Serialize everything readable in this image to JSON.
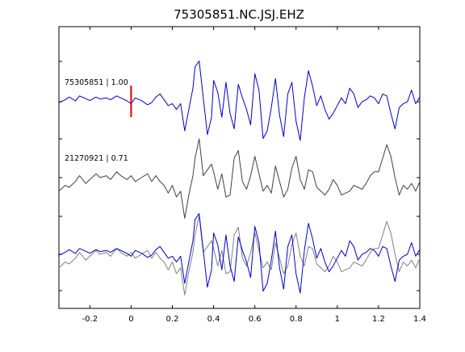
{
  "chart_data": {
    "type": "line",
    "title": "75305851.NC.JSJ.EHZ",
    "xlabel": "",
    "ylabel": "",
    "xlim": [
      -0.35,
      1.4
    ],
    "x_ticks": [
      -0.2,
      0,
      0.2,
      0.4,
      0.6,
      0.8,
      1,
      1.2,
      1.4
    ],
    "x_tick_labels": [
      "-0.2",
      "0",
      "0.2",
      "0.4",
      "0.6",
      "0.8",
      "1",
      "1.2",
      "1.4"
    ],
    "grid": false,
    "pick_time": 0,
    "colors": {
      "master": "#0000cc",
      "matched": "#404040",
      "matched_overlay": "#808080",
      "pick_marker": "#dd0000"
    },
    "panels": [
      {
        "label": "75305851 | 1.00",
        "series": [
          {
            "color_key": "master",
            "x": [
              -0.35,
              -0.32,
              -0.3,
              -0.27,
              -0.25,
              -0.22,
              -0.2,
              -0.17,
              -0.15,
              -0.12,
              -0.1,
              -0.07,
              -0.05,
              -0.02,
              0,
              0.02,
              0.05,
              0.08,
              0.1,
              0.12,
              0.14,
              0.16,
              0.18,
              0.2,
              0.22,
              0.24,
              0.26,
              0.28,
              0.3,
              0.31,
              0.33,
              0.35,
              0.37,
              0.39,
              0.4,
              0.42,
              0.44,
              0.46,
              0.48,
              0.5,
              0.52,
              0.54,
              0.56,
              0.58,
              0.6,
              0.62,
              0.64,
              0.66,
              0.68,
              0.7,
              0.72,
              0.74,
              0.76,
              0.78,
              0.8,
              0.82,
              0.84,
              0.86,
              0.88,
              0.9,
              0.92,
              0.94,
              0.96,
              0.98,
              1,
              1.02,
              1.04,
              1.06,
              1.08,
              1.1,
              1.12,
              1.14,
              1.16,
              1.18,
              1.2,
              1.22,
              1.24,
              1.26,
              1.28,
              1.3,
              1.32,
              1.34,
              1.36,
              1.38,
              1.4
            ],
            "y": [
              -0.02,
              0.05,
              0.12,
              0.02,
              0.15,
              0.08,
              0.03,
              0.12,
              0.07,
              0.1,
              0.05,
              0.15,
              0.1,
              0.02,
              -0.05,
              0.1,
              0.03,
              -0.08,
              -0.02,
              0.12,
              0.2,
              0.05,
              -0.1,
              -0.05,
              -0.2,
              -0.05,
              -0.75,
              -0.2,
              0.35,
              0.9,
              1.05,
              0.1,
              -0.85,
              -0.4,
              0.55,
              0.25,
              -0.4,
              0.5,
              -0.3,
              -0.7,
              0.45,
              0.1,
              -0.2,
              -0.6,
              0.72,
              0.3,
              -0.95,
              -0.75,
              -0.15,
              0.6,
              -0.35,
              -0.9,
              0.2,
              0.5,
              -0.5,
              -1.0,
              0.1,
              0.8,
              0.4,
              -0.1,
              0.15,
              -0.2,
              -0.45,
              -0.3,
              -0.1,
              0.1,
              -0.05,
              0.35,
              0.2,
              -0.15,
              0.0,
              0.05,
              0.15,
              0.1,
              -0.05,
              0.2,
              0.15,
              -0.3,
              -0.7,
              -0.15,
              -0.05,
              0.0,
              0.3,
              -0.05,
              0.12
            ]
          }
        ]
      },
      {
        "label": "21270921 | 0.71",
        "series": [
          {
            "color_key": "matched",
            "x": [
              -0.35,
              -0.32,
              -0.3,
              -0.27,
              -0.25,
              -0.22,
              -0.2,
              -0.17,
              -0.15,
              -0.12,
              -0.1,
              -0.07,
              -0.05,
              -0.02,
              0,
              0.02,
              0.05,
              0.08,
              0.1,
              0.12,
              0.14,
              0.16,
              0.18,
              0.2,
              0.22,
              0.24,
              0.26,
              0.28,
              0.3,
              0.31,
              0.33,
              0.35,
              0.37,
              0.39,
              0.4,
              0.42,
              0.44,
              0.46,
              0.48,
              0.5,
              0.52,
              0.54,
              0.56,
              0.58,
              0.6,
              0.62,
              0.64,
              0.66,
              0.68,
              0.7,
              0.72,
              0.74,
              0.76,
              0.78,
              0.8,
              0.82,
              0.84,
              0.86,
              0.88,
              0.9,
              0.92,
              0.94,
              0.96,
              0.98,
              1,
              1.02,
              1.04,
              1.06,
              1.08,
              1.1,
              1.12,
              1.14,
              1.16,
              1.18,
              1.2,
              1.22,
              1.24,
              1.26,
              1.28,
              1.3,
              1.32,
              1.34,
              1.36,
              1.38,
              1.4
            ],
            "y": [
              -0.35,
              -0.2,
              -0.25,
              -0.1,
              0.05,
              -0.15,
              -0.05,
              0.1,
              0.0,
              0.05,
              -0.05,
              0.15,
              0.05,
              -0.05,
              0.05,
              -0.1,
              0.0,
              0.1,
              -0.1,
              0.05,
              -0.1,
              -0.2,
              -0.4,
              -0.2,
              -0.5,
              -0.35,
              -1.05,
              -0.45,
              0.05,
              0.5,
              1.0,
              0.05,
              0.2,
              0.35,
              0.15,
              -0.3,
              0.1,
              -0.5,
              -0.45,
              0.5,
              0.7,
              -0.1,
              -0.3,
              0.05,
              0.55,
              0.1,
              -0.35,
              -0.2,
              -0.4,
              0.3,
              -0.1,
              -0.5,
              -0.3,
              0.25,
              0.55,
              -0.05,
              -0.3,
              0.2,
              0.15,
              -0.25,
              -0.35,
              -0.45,
              -0.3,
              -0.05,
              -0.2,
              -0.45,
              -0.4,
              -0.35,
              -0.2,
              -0.25,
              -0.3,
              -0.15,
              0.05,
              0.15,
              0.15,
              0.5,
              0.85,
              0.55,
              0.0,
              -0.45,
              -0.2,
              -0.3,
              -0.15,
              -0.35,
              -0.1
            ]
          }
        ]
      },
      {
        "label": "",
        "series": [
          {
            "color_key": "matched_overlay",
            "x": [
              -0.35,
              -0.32,
              -0.3,
              -0.27,
              -0.25,
              -0.22,
              -0.2,
              -0.17,
              -0.15,
              -0.12,
              -0.1,
              -0.07,
              -0.05,
              -0.02,
              0,
              0.02,
              0.05,
              0.08,
              0.1,
              0.12,
              0.14,
              0.16,
              0.18,
              0.2,
              0.22,
              0.24,
              0.26,
              0.28,
              0.3,
              0.31,
              0.33,
              0.35,
              0.37,
              0.39,
              0.4,
              0.42,
              0.44,
              0.46,
              0.48,
              0.5,
              0.52,
              0.54,
              0.56,
              0.58,
              0.6,
              0.62,
              0.64,
              0.66,
              0.68,
              0.7,
              0.72,
              0.74,
              0.76,
              0.78,
              0.8,
              0.82,
              0.84,
              0.86,
              0.88,
              0.9,
              0.92,
              0.94,
              0.96,
              0.98,
              1,
              1.02,
              1.04,
              1.06,
              1.08,
              1.1,
              1.12,
              1.14,
              1.16,
              1.18,
              1.2,
              1.22,
              1.24,
              1.26,
              1.28,
              1.3,
              1.32,
              1.34,
              1.36,
              1.38,
              1.4
            ],
            "y": [
              -0.35,
              -0.2,
              -0.25,
              -0.1,
              0.05,
              -0.15,
              -0.05,
              0.1,
              0.0,
              0.05,
              -0.05,
              0.15,
              0.05,
              -0.05,
              0.05,
              -0.1,
              0.0,
              0.1,
              -0.1,
              0.05,
              -0.1,
              -0.2,
              -0.4,
              -0.2,
              -0.5,
              -0.35,
              -1.05,
              -0.45,
              0.05,
              0.5,
              1.0,
              0.05,
              0.2,
              0.35,
              0.15,
              -0.3,
              0.1,
              -0.5,
              -0.45,
              0.5,
              0.7,
              -0.1,
              -0.3,
              0.05,
              0.55,
              0.1,
              -0.35,
              -0.2,
              -0.4,
              0.3,
              -0.1,
              -0.5,
              -0.3,
              0.25,
              0.55,
              -0.05,
              -0.3,
              0.2,
              0.15,
              -0.25,
              -0.35,
              -0.45,
              -0.3,
              -0.05,
              -0.2,
              -0.45,
              -0.4,
              -0.35,
              -0.2,
              -0.25,
              -0.3,
              -0.15,
              0.05,
              0.15,
              0.15,
              0.5,
              0.85,
              0.55,
              0.0,
              -0.45,
              -0.2,
              -0.3,
              -0.15,
              -0.35,
              -0.1
            ]
          },
          {
            "color_key": "master",
            "x": [
              -0.35,
              -0.32,
              -0.3,
              -0.27,
              -0.25,
              -0.22,
              -0.2,
              -0.17,
              -0.15,
              -0.12,
              -0.1,
              -0.07,
              -0.05,
              -0.02,
              0,
              0.02,
              0.05,
              0.08,
              0.1,
              0.12,
              0.14,
              0.16,
              0.18,
              0.2,
              0.22,
              0.24,
              0.26,
              0.28,
              0.3,
              0.31,
              0.33,
              0.35,
              0.37,
              0.39,
              0.4,
              0.42,
              0.44,
              0.46,
              0.48,
              0.5,
              0.52,
              0.54,
              0.56,
              0.58,
              0.6,
              0.62,
              0.64,
              0.66,
              0.68,
              0.7,
              0.72,
              0.74,
              0.76,
              0.78,
              0.8,
              0.82,
              0.84,
              0.86,
              0.88,
              0.9,
              0.92,
              0.94,
              0.96,
              0.98,
              1,
              1.02,
              1.04,
              1.06,
              1.08,
              1.1,
              1.12,
              1.14,
              1.16,
              1.18,
              1.2,
              1.22,
              1.24,
              1.26,
              1.28,
              1.3,
              1.32,
              1.34,
              1.36,
              1.38,
              1.4
            ],
            "y": [
              -0.02,
              0.05,
              0.12,
              0.02,
              0.15,
              0.08,
              0.03,
              0.12,
              0.07,
              0.1,
              0.05,
              0.15,
              0.1,
              0.02,
              -0.05,
              0.1,
              0.03,
              -0.08,
              -0.02,
              0.12,
              0.2,
              0.05,
              -0.1,
              -0.05,
              -0.2,
              -0.05,
              -0.75,
              -0.2,
              0.35,
              0.9,
              1.05,
              0.1,
              -0.85,
              -0.4,
              0.55,
              0.25,
              -0.4,
              0.5,
              -0.3,
              -0.7,
              0.45,
              0.1,
              -0.2,
              -0.6,
              0.72,
              0.3,
              -0.95,
              -0.75,
              -0.15,
              0.6,
              -0.35,
              -0.9,
              0.2,
              0.5,
              -0.5,
              -1.0,
              0.1,
              0.8,
              0.4,
              -0.1,
              0.15,
              -0.2,
              -0.45,
              -0.3,
              -0.1,
              0.1,
              -0.05,
              0.35,
              0.2,
              -0.15,
              0.0,
              0.05,
              0.15,
              0.1,
              -0.05,
              0.2,
              0.15,
              -0.3,
              -0.7,
              -0.15,
              -0.05,
              0.0,
              0.3,
              -0.05,
              0.12
            ]
          }
        ]
      }
    ]
  }
}
